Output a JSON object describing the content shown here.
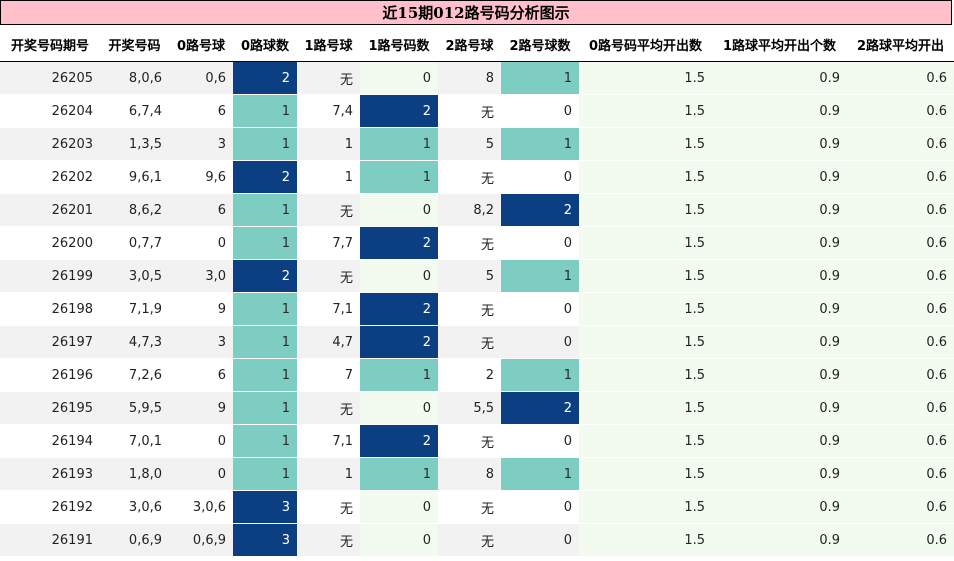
{
  "title": "近15期012路号码分析图示",
  "colors": {
    "title_bg": "#ffc0cb",
    "count_1": "#7ecdc3",
    "count_2_plus": "#0b3f82",
    "pale_column": "#f3fbf0",
    "stripe": "#f2f2f2"
  },
  "headers": [
    "开奖号码期号",
    "开奖号码",
    "0路号球",
    "0路球数",
    "1路号球",
    "1路号码数",
    "2路号球",
    "2路号球数",
    "0路号码平均开出数",
    "1路球平均开出个数",
    "2路球平均开出"
  ],
  "rows": [
    [
      "26205",
      "8,0,6",
      "0,6",
      "2",
      "无",
      "0",
      "8",
      "1",
      "1.5",
      "0.9",
      "0.6"
    ],
    [
      "26204",
      "6,7,4",
      "6",
      "1",
      "7,4",
      "2",
      "无",
      "0",
      "1.5",
      "0.9",
      "0.6"
    ],
    [
      "26203",
      "1,3,5",
      "3",
      "1",
      "1",
      "1",
      "5",
      "1",
      "1.5",
      "0.9",
      "0.6"
    ],
    [
      "26202",
      "9,6,1",
      "9,6",
      "2",
      "1",
      "1",
      "无",
      "0",
      "1.5",
      "0.9",
      "0.6"
    ],
    [
      "26201",
      "8,6,2",
      "6",
      "1",
      "无",
      "0",
      "8,2",
      "2",
      "1.5",
      "0.9",
      "0.6"
    ],
    [
      "26200",
      "0,7,7",
      "0",
      "1",
      "7,7",
      "2",
      "无",
      "0",
      "1.5",
      "0.9",
      "0.6"
    ],
    [
      "26199",
      "3,0,5",
      "3,0",
      "2",
      "无",
      "0",
      "5",
      "1",
      "1.5",
      "0.9",
      "0.6"
    ],
    [
      "26198",
      "7,1,9",
      "9",
      "1",
      "7,1",
      "2",
      "无",
      "0",
      "1.5",
      "0.9",
      "0.6"
    ],
    [
      "26197",
      "4,7,3",
      "3",
      "1",
      "4,7",
      "2",
      "无",
      "0",
      "1.5",
      "0.9",
      "0.6"
    ],
    [
      "26196",
      "7,2,6",
      "6",
      "1",
      "7",
      "1",
      "2",
      "1",
      "1.5",
      "0.9",
      "0.6"
    ],
    [
      "26195",
      "5,9,5",
      "9",
      "1",
      "无",
      "0",
      "5,5",
      "2",
      "1.5",
      "0.9",
      "0.6"
    ],
    [
      "26194",
      "7,0,1",
      "0",
      "1",
      "7,1",
      "2",
      "无",
      "0",
      "1.5",
      "0.9",
      "0.6"
    ],
    [
      "26193",
      "1,8,0",
      "0",
      "1",
      "1",
      "1",
      "8",
      "1",
      "1.5",
      "0.9",
      "0.6"
    ],
    [
      "26192",
      "3,0,6",
      "3,0,6",
      "3",
      "无",
      "0",
      "无",
      "0",
      "1.5",
      "0.9",
      "0.6"
    ],
    [
      "26191",
      "0,6,9",
      "0,6,9",
      "3",
      "无",
      "0",
      "无",
      "0",
      "1.5",
      "0.9",
      "0.6"
    ]
  ]
}
